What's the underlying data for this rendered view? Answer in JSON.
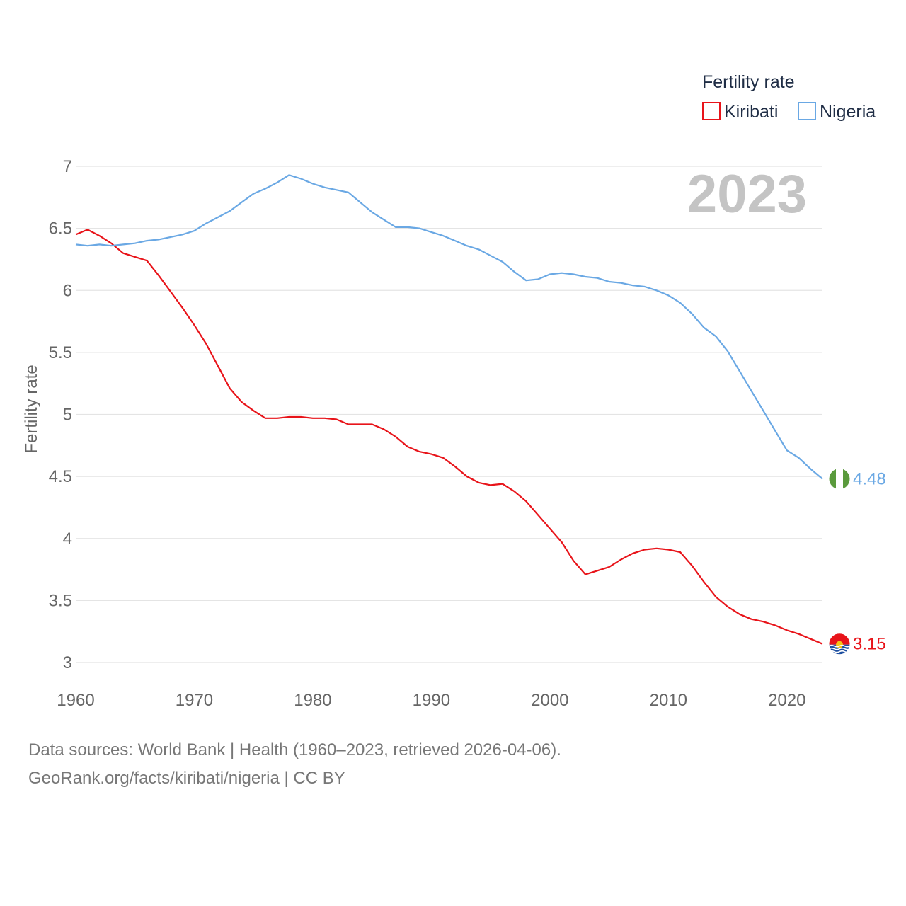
{
  "chart_data": {
    "type": "line",
    "title": "",
    "year_watermark": "2023",
    "legend_title": "Fertility rate",
    "legend_position": "top-right",
    "xlabel": "",
    "ylabel": "Fertility rate",
    "xlim": [
      1960,
      2023
    ],
    "ylim": [
      3,
      7
    ],
    "x_ticks": [
      1960,
      1970,
      1980,
      1990,
      2000,
      2010,
      2020
    ],
    "y_ticks": [
      3,
      3.5,
      4,
      4.5,
      5,
      5.5,
      6,
      6.5,
      7
    ],
    "y_tick_labels": [
      "3",
      "3.5",
      "4",
      "4.5",
      "5",
      "5.5",
      "6",
      "6.5",
      "7"
    ],
    "grid": true,
    "series": [
      {
        "name": "Kiribati",
        "color": "#e8141a",
        "end_label": "3.15",
        "flag_icon": "kiribati-flag-icon",
        "points": [
          [
            1960,
            6.45
          ],
          [
            1961,
            6.49
          ],
          [
            1962,
            6.44
          ],
          [
            1963,
            6.38
          ],
          [
            1964,
            6.3
          ],
          [
            1965,
            6.27
          ],
          [
            1966,
            6.24
          ],
          [
            1967,
            6.12
          ],
          [
            1968,
            5.99
          ],
          [
            1969,
            5.86
          ],
          [
            1970,
            5.72
          ],
          [
            1971,
            5.57
          ],
          [
            1972,
            5.39
          ],
          [
            1973,
            5.21
          ],
          [
            1974,
            5.1
          ],
          [
            1975,
            5.03
          ],
          [
            1976,
            4.97
          ],
          [
            1977,
            4.97
          ],
          [
            1978,
            4.98
          ],
          [
            1979,
            4.98
          ],
          [
            1980,
            4.97
          ],
          [
            1981,
            4.97
          ],
          [
            1982,
            4.96
          ],
          [
            1983,
            4.92
          ],
          [
            1984,
            4.92
          ],
          [
            1985,
            4.92
          ],
          [
            1986,
            4.88
          ],
          [
            1987,
            4.82
          ],
          [
            1988,
            4.74
          ],
          [
            1989,
            4.7
          ],
          [
            1990,
            4.68
          ],
          [
            1991,
            4.65
          ],
          [
            1992,
            4.58
          ],
          [
            1993,
            4.5
          ],
          [
            1994,
            4.45
          ],
          [
            1995,
            4.43
          ],
          [
            1996,
            4.44
          ],
          [
            1997,
            4.38
          ],
          [
            1998,
            4.3
          ],
          [
            1999,
            4.19
          ],
          [
            2000,
            4.08
          ],
          [
            2001,
            3.97
          ],
          [
            2002,
            3.82
          ],
          [
            2003,
            3.71
          ],
          [
            2004,
            3.74
          ],
          [
            2005,
            3.77
          ],
          [
            2006,
            3.83
          ],
          [
            2007,
            3.88
          ],
          [
            2008,
            3.91
          ],
          [
            2009,
            3.92
          ],
          [
            2010,
            3.91
          ],
          [
            2011,
            3.89
          ],
          [
            2012,
            3.78
          ],
          [
            2013,
            3.65
          ],
          [
            2014,
            3.53
          ],
          [
            2015,
            3.45
          ],
          [
            2016,
            3.39
          ],
          [
            2017,
            3.35
          ],
          [
            2018,
            3.33
          ],
          [
            2019,
            3.3
          ],
          [
            2020,
            3.26
          ],
          [
            2021,
            3.23
          ],
          [
            2022,
            3.19
          ],
          [
            2023,
            3.15
          ]
        ]
      },
      {
        "name": "Nigeria",
        "color": "#6aa8e4",
        "end_label": "4.48",
        "flag_icon": "nigeria-flag-icon",
        "points": [
          [
            1960,
            6.37
          ],
          [
            1961,
            6.36
          ],
          [
            1962,
            6.37
          ],
          [
            1963,
            6.36
          ],
          [
            1964,
            6.37
          ],
          [
            1965,
            6.38
          ],
          [
            1966,
            6.4
          ],
          [
            1967,
            6.41
          ],
          [
            1968,
            6.43
          ],
          [
            1969,
            6.45
          ],
          [
            1970,
            6.48
          ],
          [
            1971,
            6.54
          ],
          [
            1972,
            6.59
          ],
          [
            1973,
            6.64
          ],
          [
            1974,
            6.71
          ],
          [
            1975,
            6.78
          ],
          [
            1976,
            6.82
          ],
          [
            1977,
            6.87
          ],
          [
            1978,
            6.93
          ],
          [
            1979,
            6.9
          ],
          [
            1980,
            6.86
          ],
          [
            1981,
            6.83
          ],
          [
            1982,
            6.81
          ],
          [
            1983,
            6.79
          ],
          [
            1984,
            6.71
          ],
          [
            1985,
            6.63
          ],
          [
            1986,
            6.57
          ],
          [
            1987,
            6.51
          ],
          [
            1988,
            6.51
          ],
          [
            1989,
            6.5
          ],
          [
            1990,
            6.47
          ],
          [
            1991,
            6.44
          ],
          [
            1992,
            6.4
          ],
          [
            1993,
            6.36
          ],
          [
            1994,
            6.33
          ],
          [
            1995,
            6.28
          ],
          [
            1996,
            6.23
          ],
          [
            1997,
            6.15
          ],
          [
            1998,
            6.08
          ],
          [
            1999,
            6.09
          ],
          [
            2000,
            6.13
          ],
          [
            2001,
            6.14
          ],
          [
            2002,
            6.13
          ],
          [
            2003,
            6.11
          ],
          [
            2004,
            6.1
          ],
          [
            2005,
            6.07
          ],
          [
            2006,
            6.06
          ],
          [
            2007,
            6.04
          ],
          [
            2008,
            6.03
          ],
          [
            2009,
            6.0
          ],
          [
            2010,
            5.96
          ],
          [
            2011,
            5.9
          ],
          [
            2012,
            5.81
          ],
          [
            2013,
            5.7
          ],
          [
            2014,
            5.63
          ],
          [
            2015,
            5.51
          ],
          [
            2016,
            5.35
          ],
          [
            2017,
            5.19
          ],
          [
            2018,
            5.03
          ],
          [
            2019,
            4.87
          ],
          [
            2020,
            4.71
          ],
          [
            2021,
            4.65
          ],
          [
            2022,
            4.56
          ],
          [
            2023,
            4.48
          ]
        ]
      }
    ]
  },
  "footer": {
    "line1": "Data sources: World Bank | Health (1960–2023, retrieved 2026-04-06).",
    "line2": "GeoRank.org/facts/kiribati/nigeria | CC BY"
  }
}
